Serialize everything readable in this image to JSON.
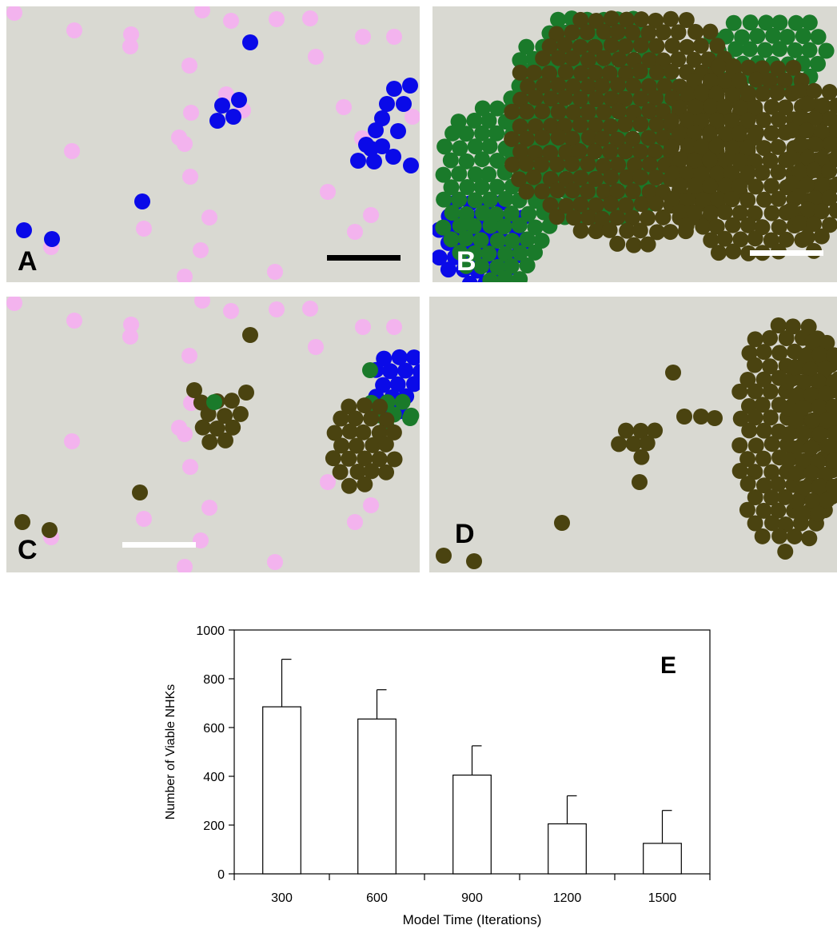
{
  "panels": {
    "a": {
      "letter": "A",
      "letter_color": "#000000",
      "scale_bar_color": "#000000"
    },
    "b": {
      "letter": "B",
      "letter_color": "#ffffff",
      "scale_bar_color": "#ffffff"
    },
    "c": {
      "letter": "C",
      "letter_color": "#000000",
      "scale_bar_color": "#ffffff"
    },
    "d": {
      "letter": "D",
      "letter_color": "#000000"
    }
  },
  "colors": {
    "background": "#d9d9d2",
    "pink_cell": "#f3b3ee",
    "blue_cell": "#0a0ae8",
    "green_cell": "#1a7a2a",
    "olive_cell": "#4a4310",
    "bar_fill": "#ffffff",
    "bar_stroke": "#000000"
  },
  "chart_data": {
    "type": "bar",
    "panel_label": "E",
    "categories": [
      "300",
      "600",
      "900",
      "1200",
      "1500"
    ],
    "values": [
      685,
      635,
      405,
      205,
      125
    ],
    "error_upper": [
      195,
      120,
      120,
      115,
      135
    ],
    "xlabel": "Model Time (Iterations)",
    "ylabel": "Number of Viable NHKs",
    "ylim": [
      0,
      1000
    ],
    "yticks": [
      "0",
      "200",
      "400",
      "600",
      "800",
      "1000"
    ],
    "grid": false,
    "legend": "none"
  }
}
